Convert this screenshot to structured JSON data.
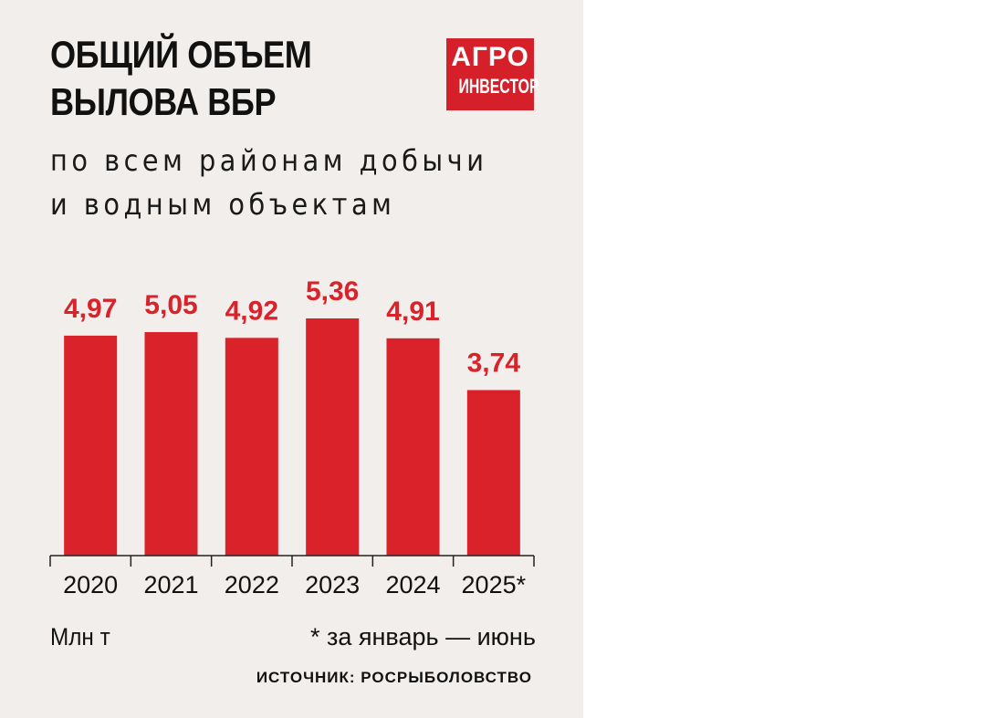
{
  "title_line1": "ОБЩИЙ ОБЪЕМ",
  "title_line2": "ВЫЛОВА ВБР",
  "subtitle_line1": "по всем районам добычи",
  "subtitle_line2": "и водным объектам",
  "logo_line1": "АГРО",
  "logo_line2": "ИНВЕСТОР",
  "unit": "Млн т",
  "footnote": "* за январь — июнь",
  "source": "ИСТОЧНИК: РОСРЫБОЛОВСТВО",
  "colors": {
    "bar": "#d9222a",
    "background": "#f1eeeb",
    "logo": "#d52029"
  },
  "chart_data": {
    "type": "bar",
    "categories": [
      "2020",
      "2021",
      "2022",
      "2023",
      "2024",
      "2025*"
    ],
    "values": [
      4.97,
      5.05,
      4.92,
      5.36,
      4.91,
      3.74
    ],
    "value_labels": [
      "4,97",
      "5,05",
      "4,92",
      "5,36",
      "4,91",
      "3,74"
    ],
    "ylabel": "Млн т",
    "grid": false,
    "legend": "none"
  }
}
